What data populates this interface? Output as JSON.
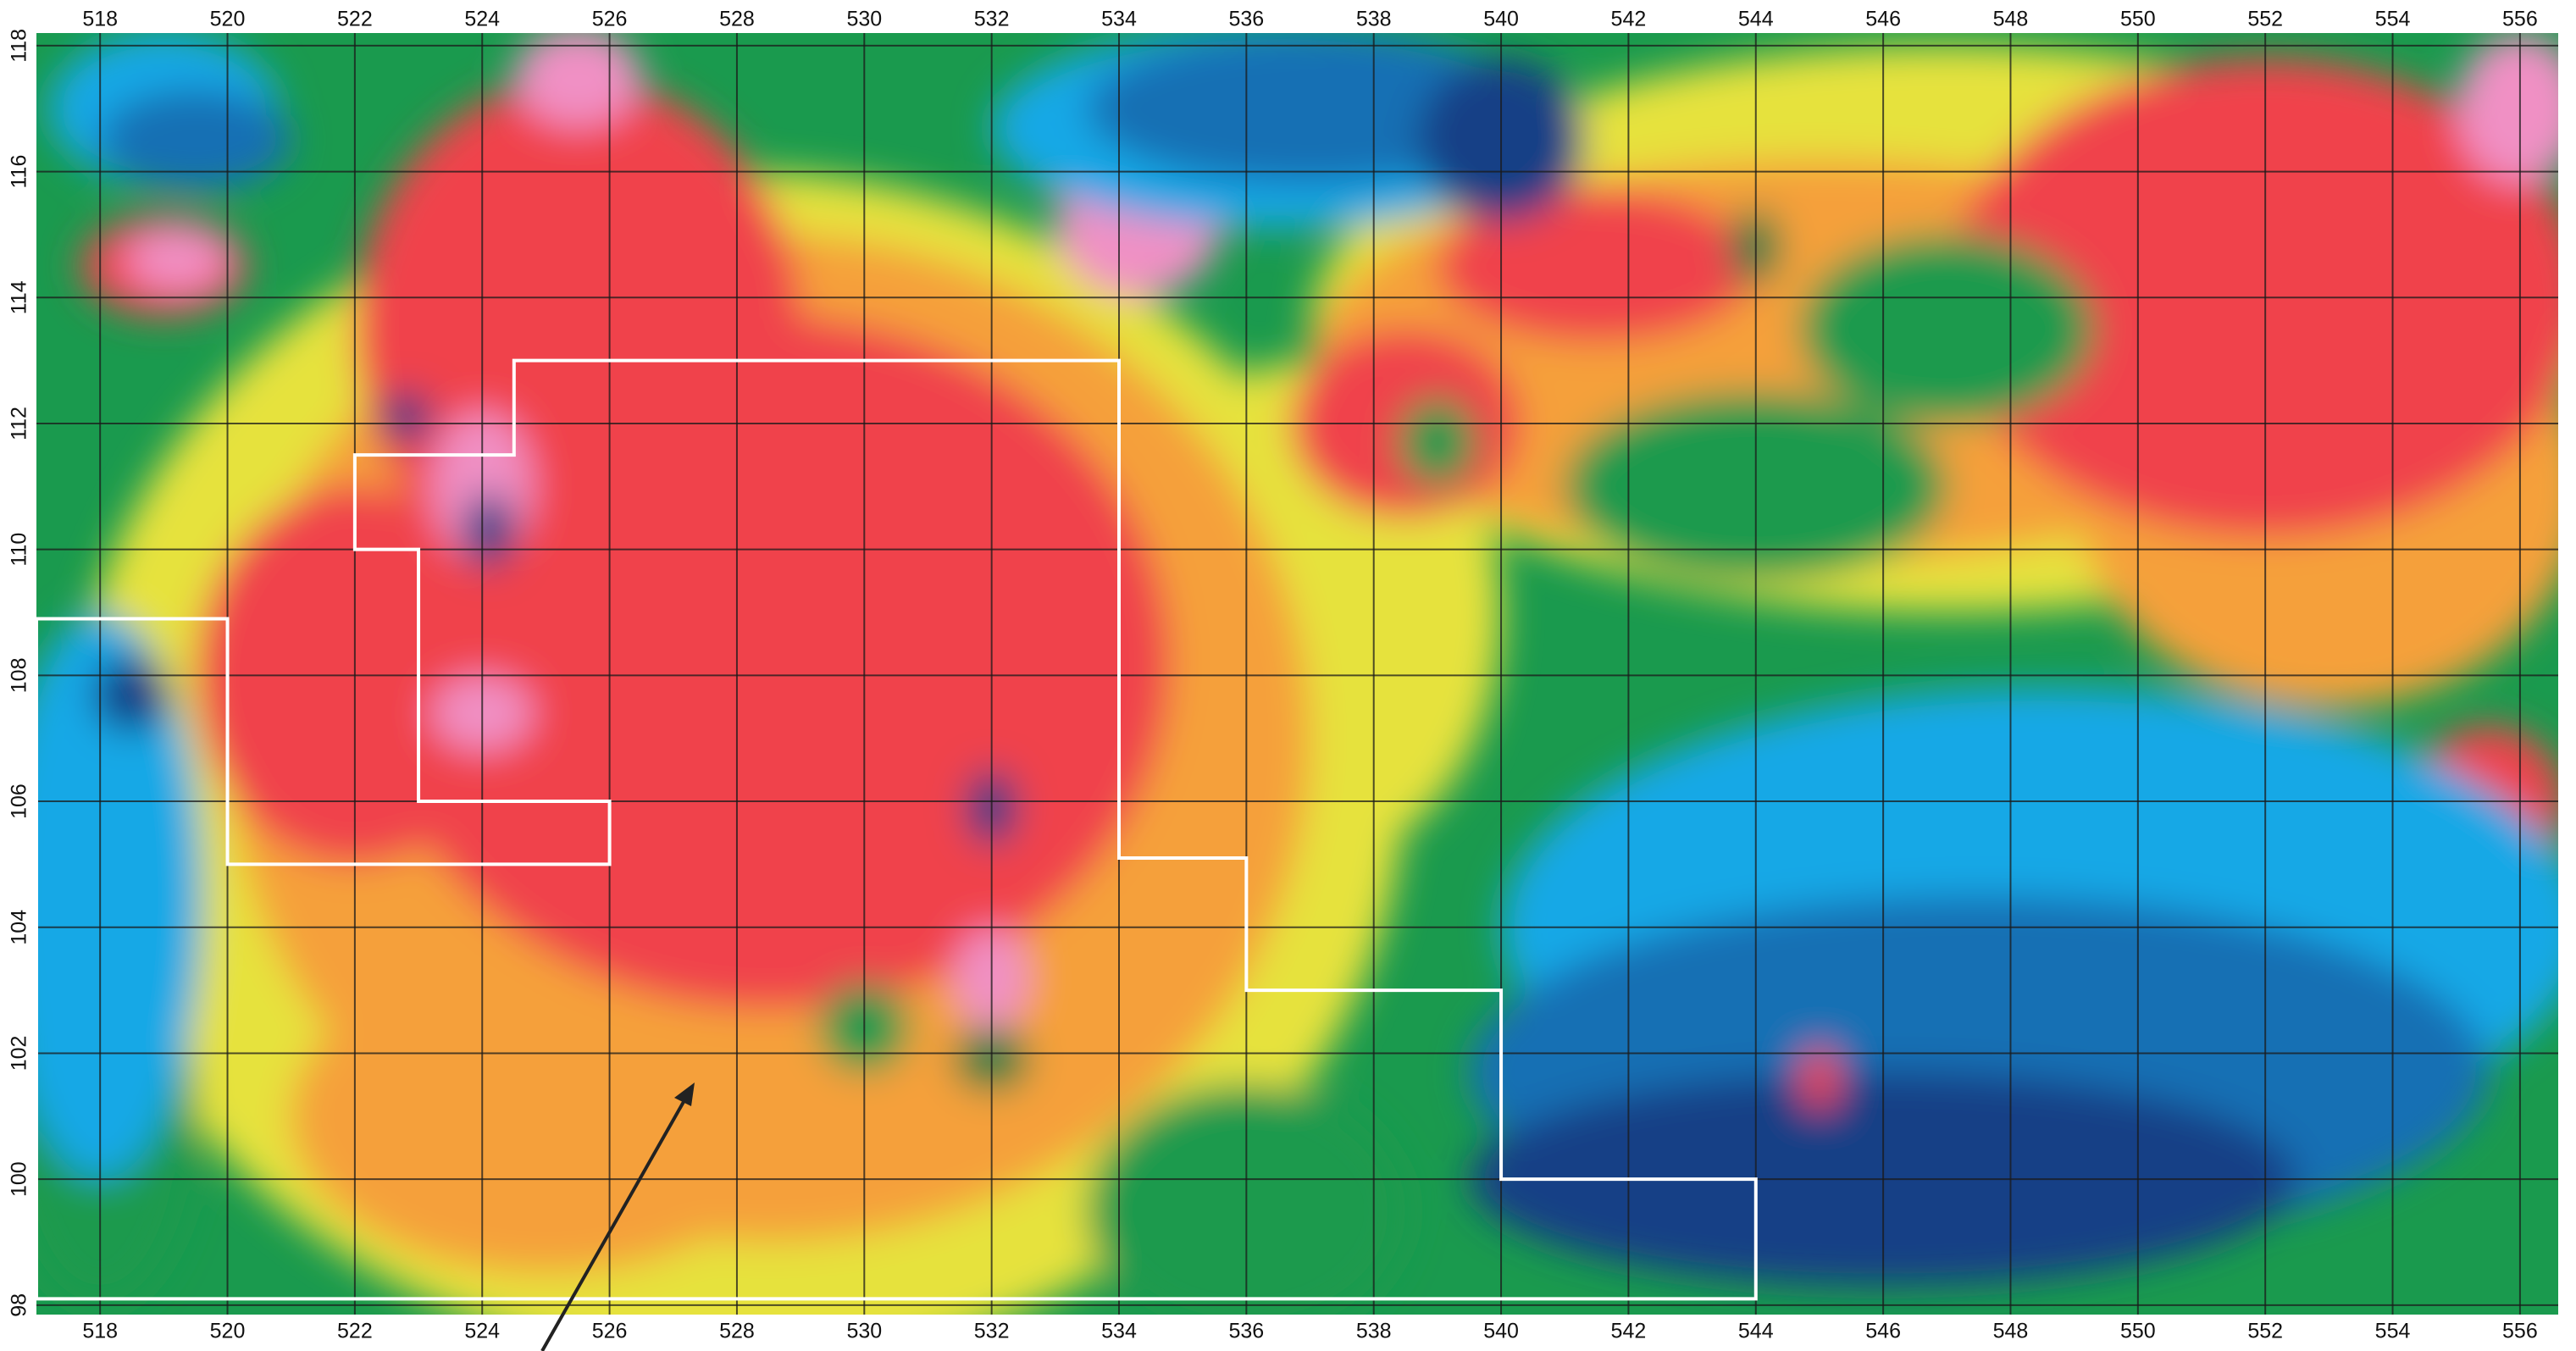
{
  "chart_data": {
    "type": "contour",
    "xlim": [
      517,
      556.6
    ],
    "ylim": [
      97.85,
      118.2
    ],
    "xticks": [
      518,
      520,
      522,
      524,
      526,
      528,
      530,
      532,
      534,
      536,
      538,
      540,
      542,
      544,
      546,
      548,
      550,
      552,
      554,
      556
    ],
    "yticks": [
      98,
      100,
      102,
      104,
      106,
      108,
      110,
      112,
      114,
      116,
      118
    ],
    "grid": true
  }
}
